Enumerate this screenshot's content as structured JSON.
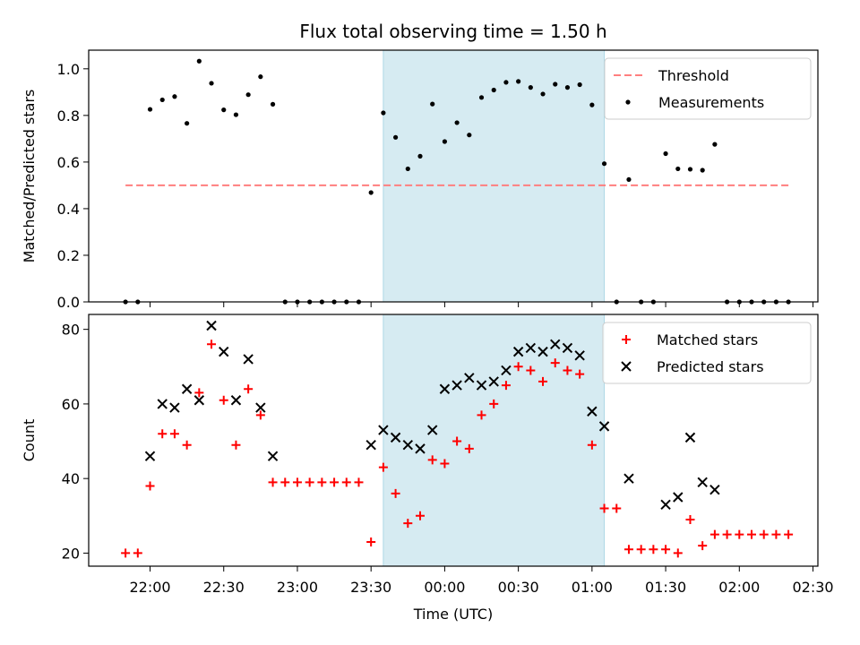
{
  "chart_data": {
    "title": "Flux total observing time = 1.50 h",
    "xlabel": "Time (UTC)",
    "shaded_range": [
      "23:35",
      "01:05"
    ],
    "x_ticks": [
      "22:00",
      "22:30",
      "23:00",
      "23:30",
      "00:00",
      "00:30",
      "01:00",
      "01:30",
      "02:00",
      "02:30"
    ],
    "x_tick_minutes": [
      0,
      30,
      60,
      90,
      120,
      150,
      180,
      210,
      240,
      270
    ],
    "xlim_minutes": [
      -25,
      272
    ],
    "x_origin_time": "22:00",
    "panels": [
      {
        "type": "scatter",
        "ylabel": "Matched/Predicted stars",
        "ylim": [
          0,
          1.08
        ],
        "y_ticks": [
          "0.0",
          "0.2",
          "0.4",
          "0.6",
          "0.8",
          "1.0"
        ],
        "y_tick_values": [
          0,
          0.2,
          0.4,
          0.6,
          0.8,
          1.0
        ],
        "legend_position": "top-right",
        "series": [
          {
            "name": "Threshold",
            "kind": "dashed-line",
            "color": "#ff7f7f",
            "y": 0.5,
            "x_range": [
              "21:50",
              "02:20"
            ]
          },
          {
            "name": "Measurements",
            "kind": "dots",
            "color": "#000000",
            "points": [
              [
                "21:50",
                0.0
              ],
              [
                "21:55",
                0.0
              ],
              [
                "22:00",
                0.826
              ],
              [
                "22:05",
                0.867
              ],
              [
                "22:10",
                0.881
              ],
              [
                "22:15",
                0.766
              ],
              [
                "22:20",
                1.033
              ],
              [
                "22:25",
                0.938
              ],
              [
                "22:30",
                0.824
              ],
              [
                "22:35",
                0.803
              ],
              [
                "22:40",
                0.889
              ],
              [
                "22:45",
                0.966
              ],
              [
                "22:50",
                0.848
              ],
              [
                "22:55",
                0.0
              ],
              [
                "23:00",
                0.0
              ],
              [
                "23:05",
                0.0
              ],
              [
                "23:10",
                0.0
              ],
              [
                "23:15",
                0.0
              ],
              [
                "23:20",
                0.0
              ],
              [
                "23:25",
                0.0
              ],
              [
                "23:30",
                0.469
              ],
              [
                "23:35",
                0.811
              ],
              [
                "23:40",
                0.706
              ],
              [
                "23:45",
                0.571
              ],
              [
                "23:50",
                0.625
              ],
              [
                "23:55",
                0.849
              ],
              [
                "00:00",
                0.688
              ],
              [
                "00:05",
                0.769
              ],
              [
                "00:10",
                0.716
              ],
              [
                "00:15",
                0.877
              ],
              [
                "00:20",
                0.909
              ],
              [
                "00:25",
                0.942
              ],
              [
                "00:30",
                0.946
              ],
              [
                "00:35",
                0.92
              ],
              [
                "00:40",
                0.892
              ],
              [
                "00:45",
                0.934
              ],
              [
                "00:50",
                0.92
              ],
              [
                "00:55",
                0.932
              ],
              [
                "01:00",
                0.845
              ],
              [
                "01:05",
                0.593
              ],
              [
                "01:10",
                0.0
              ],
              [
                "01:15",
                0.525
              ],
              [
                "01:20",
                0.0
              ],
              [
                "01:25",
                0.0
              ],
              [
                "01:30",
                0.636
              ],
              [
                "01:35",
                0.571
              ],
              [
                "01:40",
                0.569
              ],
              [
                "01:45",
                0.565
              ],
              [
                "01:50",
                0.676
              ],
              [
                "01:55",
                0.0
              ],
              [
                "02:00",
                0.0
              ],
              [
                "02:05",
                0.0
              ],
              [
                "02:10",
                0.0
              ],
              [
                "02:15",
                0.0
              ],
              [
                "02:20",
                0.0
              ]
            ]
          }
        ]
      },
      {
        "type": "scatter",
        "ylabel": "Count",
        "ylim": [
          16.5,
          84
        ],
        "y_ticks": [
          "20",
          "40",
          "60",
          "80"
        ],
        "y_tick_values": [
          20,
          40,
          60,
          80
        ],
        "legend_position": "top-right",
        "series": [
          {
            "name": "Matched stars",
            "kind": "plus",
            "color": "#ff0000",
            "points": [
              [
                "21:50",
                20
              ],
              [
                "21:55",
                20
              ],
              [
                "22:00",
                38
              ],
              [
                "22:05",
                52
              ],
              [
                "22:10",
                52
              ],
              [
                "22:15",
                49
              ],
              [
                "22:20",
                63
              ],
              [
                "22:25",
                76
              ],
              [
                "22:30",
                61
              ],
              [
                "22:35",
                49
              ],
              [
                "22:40",
                64
              ],
              [
                "22:45",
                57
              ],
              [
                "22:50",
                39
              ],
              [
                "22:55",
                39
              ],
              [
                "23:00",
                39
              ],
              [
                "23:05",
                39
              ],
              [
                "23:10",
                39
              ],
              [
                "23:15",
                39
              ],
              [
                "23:20",
                39
              ],
              [
                "23:25",
                39
              ],
              [
                "23:30",
                23
              ],
              [
                "23:35",
                43
              ],
              [
                "23:40",
                36
              ],
              [
                "23:45",
                28
              ],
              [
                "23:50",
                30
              ],
              [
                "23:55",
                45
              ],
              [
                "00:00",
                44
              ],
              [
                "00:05",
                50
              ],
              [
                "00:10",
                48
              ],
              [
                "00:15",
                57
              ],
              [
                "00:20",
                60
              ],
              [
                "00:25",
                65
              ],
              [
                "00:30",
                70
              ],
              [
                "00:35",
                69
              ],
              [
                "00:40",
                66
              ],
              [
                "00:45",
                71
              ],
              [
                "00:50",
                69
              ],
              [
                "00:55",
                68
              ],
              [
                "01:00",
                49
              ],
              [
                "01:05",
                32
              ],
              [
                "01:10",
                32
              ],
              [
                "01:15",
                21
              ],
              [
                "01:20",
                21
              ],
              [
                "01:25",
                21
              ],
              [
                "01:30",
                21
              ],
              [
                "01:35",
                20
              ],
              [
                "01:40",
                29
              ],
              [
                "01:45",
                22
              ],
              [
                "01:50",
                25
              ],
              [
                "01:55",
                25
              ],
              [
                "02:00",
                25
              ],
              [
                "02:05",
                25
              ],
              [
                "02:10",
                25
              ],
              [
                "02:15",
                25
              ],
              [
                "02:20",
                25
              ]
            ]
          },
          {
            "name": "Predicted stars",
            "kind": "cross",
            "color": "#000000",
            "points": [
              [
                "22:00",
                46
              ],
              [
                "22:05",
                60
              ],
              [
                "22:10",
                59
              ],
              [
                "22:15",
                64
              ],
              [
                "22:20",
                61
              ],
              [
                "22:25",
                81
              ],
              [
                "22:30",
                74
              ],
              [
                "22:35",
                61
              ],
              [
                "22:40",
                72
              ],
              [
                "22:45",
                59
              ],
              [
                "22:50",
                46
              ],
              [
                "23:30",
                49
              ],
              [
                "23:35",
                53
              ],
              [
                "23:40",
                51
              ],
              [
                "23:45",
                49
              ],
              [
                "23:50",
                48
              ],
              [
                "23:55",
                53
              ],
              [
                "00:00",
                64
              ],
              [
                "00:05",
                65
              ],
              [
                "00:10",
                67
              ],
              [
                "00:15",
                65
              ],
              [
                "00:20",
                66
              ],
              [
                "00:25",
                69
              ],
              [
                "00:30",
                74
              ],
              [
                "00:35",
                75
              ],
              [
                "00:40",
                74
              ],
              [
                "00:45",
                76
              ],
              [
                "00:50",
                75
              ],
              [
                "00:55",
                73
              ],
              [
                "01:00",
                58
              ],
              [
                "01:05",
                54
              ],
              [
                "01:15",
                40
              ],
              [
                "01:30",
                33
              ],
              [
                "01:35",
                35
              ],
              [
                "01:40",
                51
              ],
              [
                "01:45",
                39
              ],
              [
                "01:50",
                37
              ]
            ]
          }
        ]
      }
    ],
    "colors": {
      "shade": "#add8e6",
      "shade_opacity": 0.5,
      "threshold": "#ff7f7f",
      "matched": "#ff0000",
      "predicted": "#000000",
      "measurements": "#000000"
    }
  }
}
